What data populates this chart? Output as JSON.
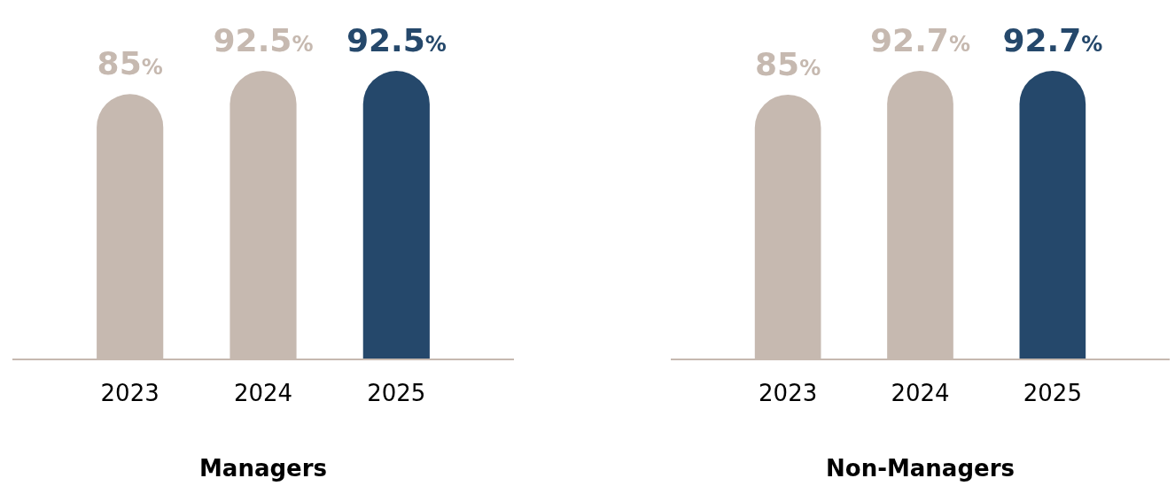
{
  "chart_data": [
    {
      "type": "bar",
      "title": "Managers",
      "categories": [
        "2023",
        "2024",
        "2025"
      ],
      "values": [
        85,
        92.5,
        92.5
      ],
      "colors": [
        "#c6b9b0",
        "#c6b9b0",
        "#25486b"
      ],
      "value_labels": [
        "85%",
        "92.5%",
        "92.5%"
      ],
      "tick_labels": "x"
    },
    {
      "type": "bar",
      "title": "Non-Managers",
      "categories": [
        "2023",
        "2024",
        "2025"
      ],
      "values": [
        85,
        92.7,
        92.7
      ],
      "colors": [
        "#c6b9b0",
        "#c6b9b0",
        "#25486b"
      ],
      "value_labels": [
        "85%",
        "92.7%",
        "92.7%"
      ],
      "tick_labels": "x"
    }
  ]
}
